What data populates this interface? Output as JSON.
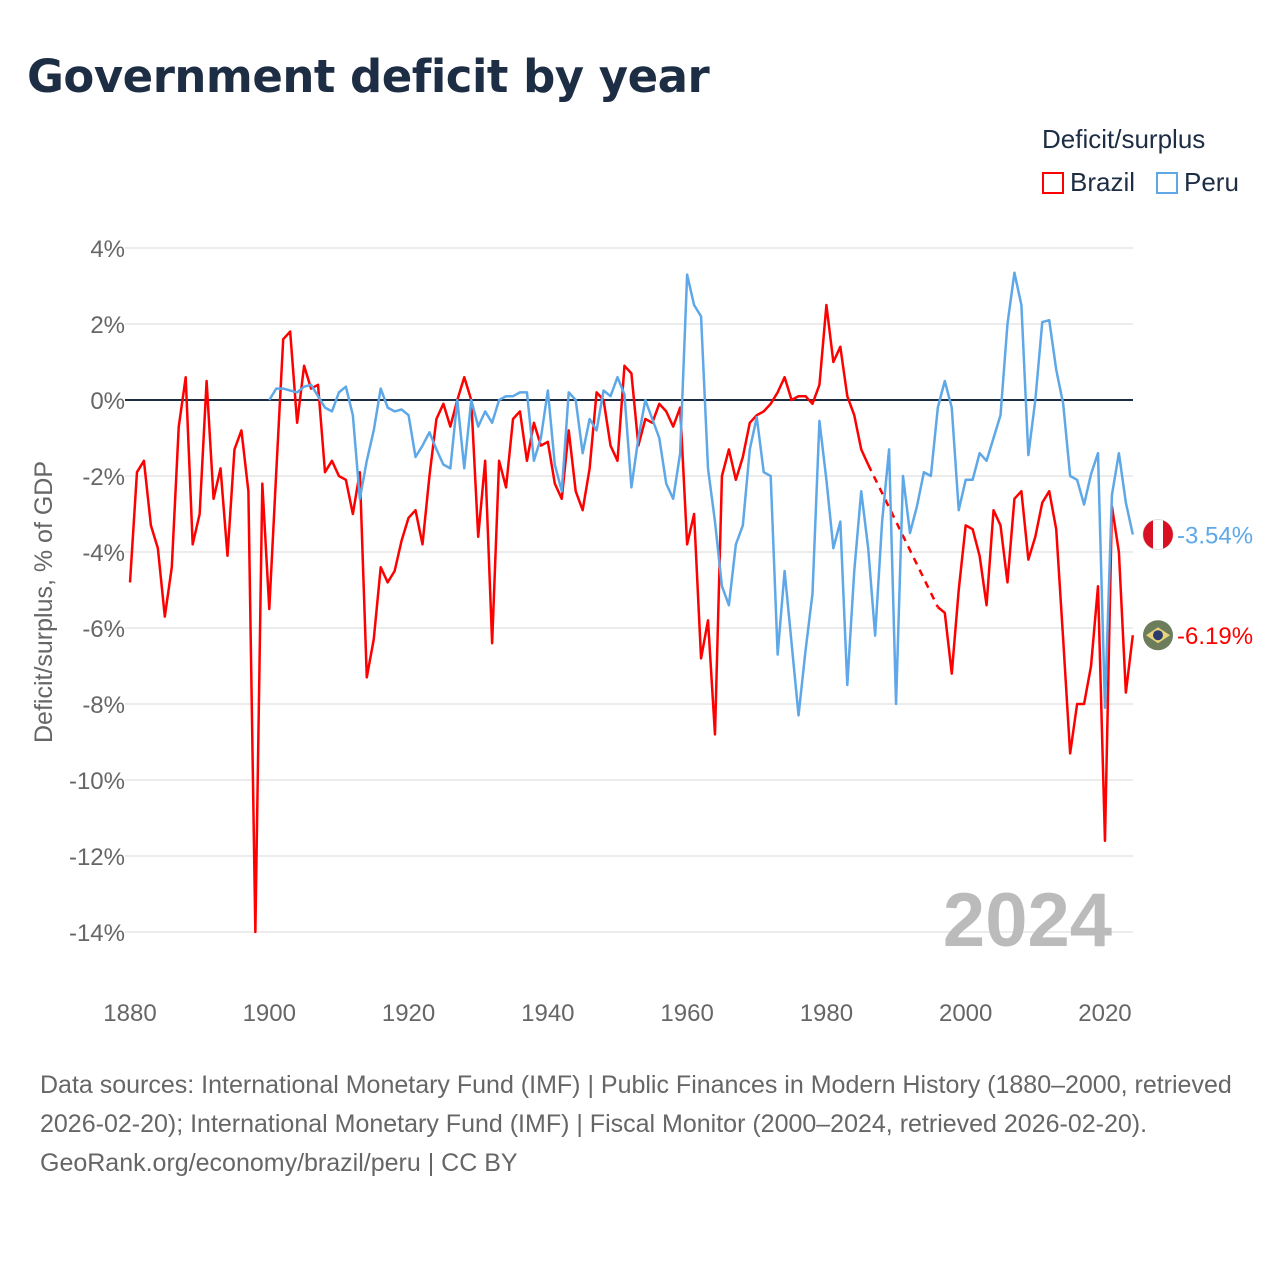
{
  "title": "Government deficit by year",
  "legend": {
    "title": "Deficit/surplus",
    "items": [
      "Brazil",
      "Peru"
    ]
  },
  "footer": {
    "sources": "Data sources: International Monetary Fund (IMF) | Public Finances in Modern History (1880–2000, retrieved 2026-02-20); International Monetary Fund (IMF) | Fiscal Monitor (2000–2024, retrieved 2026-02-20).",
    "credit": "GeoRank.org/economy/brazil/peru | CC BY"
  },
  "colors": {
    "brazil": "#ff0000",
    "peru": "#5ea8e8",
    "title": "#1d2d44"
  },
  "chart_data": {
    "type": "line",
    "ylabel": "Deficit/surplus, % of GDP",
    "xlim": [
      1880,
      2024
    ],
    "ylim": [
      -14,
      4
    ],
    "yticks": [
      4,
      2,
      0,
      -2,
      -4,
      -6,
      -8,
      -10,
      -12,
      -14
    ],
    "ytick_labels": [
      "4%",
      "2%",
      "0%",
      "-2%",
      "-4%",
      "-6%",
      "-8%",
      "-10%",
      "-12%",
      "-14%"
    ],
    "xticks": [
      1880,
      1900,
      1920,
      1940,
      1960,
      1980,
      2000,
      2020
    ],
    "xtick_labels": [
      "1880",
      "1900",
      "1920",
      "1940",
      "1960",
      "1980",
      "2000",
      "2020"
    ],
    "year_label": "2024",
    "grid": true,
    "legend_position": "top-right",
    "series": [
      {
        "name": "Brazil",
        "start": 1880,
        "end_label": "-6.19%",
        "flag": "brazil-flag",
        "values": [
          -4.8,
          -1.9,
          -1.6,
          -3.3,
          -3.9,
          -5.7,
          -4.4,
          -0.7,
          0.6,
          -3.8,
          -3.0,
          0.5,
          -2.6,
          -1.8,
          -4.1,
          -1.3,
          -0.8,
          -2.4,
          -14.0,
          -2.2,
          -5.5,
          -1.9,
          1.6,
          1.8,
          -0.6,
          0.9,
          0.3,
          0.4,
          -1.9,
          -1.6,
          -2.0,
          -2.1,
          -3.0,
          -1.9,
          -7.3,
          -6.3,
          -4.4,
          -4.8,
          -4.5,
          -3.7,
          -3.1,
          -2.9,
          -3.8,
          -2.0,
          -0.5,
          -0.1,
          -0.7,
          0.0,
          0.6,
          0.0,
          -3.6,
          -1.6,
          -6.4,
          -1.6,
          -2.3,
          -0.5,
          -0.3,
          -1.6,
          -0.6,
          -1.2,
          -1.1,
          -2.2,
          -2.6,
          -0.8,
          -2.4,
          -2.9,
          -1.8,
          0.2,
          0.0,
          -1.2,
          -1.6,
          0.9,
          0.7,
          -1.2,
          -0.5,
          -0.6,
          -0.1,
          -0.3,
          -0.7,
          -0.2,
          -3.8,
          -3.0,
          -6.8,
          -5.8,
          -8.8,
          -2.0,
          -1.3,
          -2.1,
          -1.5,
          -0.6,
          -0.4,
          -0.3,
          -0.1,
          0.2,
          0.6,
          0.0,
          0.1,
          0.1,
          -0.1,
          0.4,
          2.5,
          1.0,
          1.4,
          0.1,
          -0.4,
          -1.3,
          -1.7,
          null,
          null,
          null,
          null,
          null,
          null,
          null,
          null,
          null,
          -5.45,
          -5.6,
          -7.2,
          -5.0,
          -3.3,
          -3.4,
          -4.1,
          -5.4,
          -2.9,
          -3.3,
          -4.8,
          -2.6,
          -2.4,
          -4.2,
          -3.6,
          -2.7,
          -2.4,
          -3.4,
          -6.3,
          -9.3,
          -8.0,
          -8.0,
          -7.0,
          -4.9,
          -11.6,
          -2.8,
          -4.0,
          -7.7,
          -6.19
        ]
      },
      {
        "name": "Peru",
        "start": 1900,
        "end_label": "-3.54%",
        "flag": "peru-flag",
        "values": [
          0,
          0.3,
          0.3,
          0.25,
          0.2,
          0.35,
          0.4,
          0.1,
          -0.2,
          -0.3,
          0.2,
          0.35,
          -0.4,
          -2.6,
          -1.6,
          -0.8,
          0.3,
          -0.2,
          -0.3,
          -0.25,
          -0.4,
          -1.5,
          -1.2,
          -0.85,
          -1.3,
          -1.7,
          -1.8,
          0,
          -1.8,
          0,
          -0.7,
          -0.3,
          -0.6,
          0,
          0.1,
          0.1,
          0.2,
          0.2,
          -1.6,
          -1.0,
          0.25,
          -1.7,
          -2.4,
          0.2,
          0,
          -1.4,
          -0.5,
          -0.8,
          0.25,
          0.1,
          0.6,
          0.15,
          -2.3,
          -1.0,
          0,
          -0.5,
          -1.0,
          -2.2,
          -2.6,
          -1.4,
          3.3,
          2.5,
          2.2,
          -1.8,
          -3.2,
          -4.9,
          -5.4,
          -3.8,
          -3.3,
          -1.3,
          -0.45,
          -1.9,
          -2.0,
          -6.7,
          -4.5,
          -6.4,
          -8.3,
          -6.6,
          -5.1,
          -0.55,
          -2.1,
          -3.9,
          -3.2,
          -7.5,
          -4.5,
          -2.4,
          -3.9,
          -6.2,
          -3.2,
          -1.3,
          -8.0,
          -2.0,
          -3.5,
          -2.8,
          -1.9,
          -2.0,
          -0.2,
          0.5,
          -0.2,
          -2.9,
          -2.1,
          -2.1,
          -1.4,
          -1.6,
          -1.0,
          -0.4,
          2.0,
          3.35,
          2.5,
          -1.45,
          0,
          2.05,
          2.1,
          0.8,
          -0.1,
          -2.0,
          -2.1,
          -2.75,
          -1.95,
          -1.4,
          -8.1,
          -2.5,
          -1.4,
          -2.7,
          -3.54
        ]
      }
    ]
  }
}
